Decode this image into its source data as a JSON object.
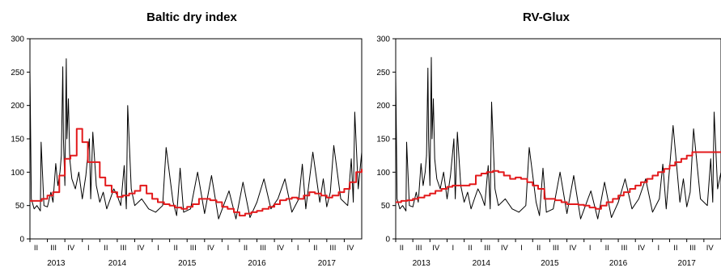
{
  "chart_data": [
    {
      "type": "line",
      "title": "Baltic dry index",
      "xlabel": "",
      "ylabel": "",
      "ylim": [
        0,
        300
      ],
      "yticks": [
        0,
        50,
        100,
        150,
        200,
        250,
        300
      ],
      "x_start": "2013 Q2",
      "x_end": "2017 Q4",
      "quarter_labels": [
        "II",
        "III",
        "IV",
        "I",
        "II",
        "III",
        "IV",
        "I",
        "II",
        "III",
        "IV",
        "I",
        "II",
        "III",
        "IV",
        "I",
        "II",
        "III",
        "IV"
      ],
      "year_labels": [
        "2013",
        "2014",
        "2015",
        "2016",
        "2017"
      ],
      "series": [
        {
          "color": "#000000",
          "x": [
            2013.25,
            2013.27,
            2013.31,
            2013.35,
            2013.4,
            2013.41,
            2013.45,
            2013.5,
            2013.55,
            2013.58,
            2013.62,
            2013.65,
            2013.68,
            2013.7,
            2013.72,
            2013.73,
            2013.75,
            2013.77,
            2013.78,
            2013.8,
            2013.82,
            2013.85,
            2013.9,
            2013.95,
            2014.0,
            2014.05,
            2014.1,
            2014.12,
            2014.15,
            2014.2,
            2014.25,
            2014.3,
            2014.35,
            2014.4,
            2014.45,
            2014.5,
            2014.55,
            2014.6,
            2014.63,
            2014.65,
            2014.7,
            2014.75,
            2014.85,
            2014.95,
            2015.05,
            2015.15,
            2015.2,
            2015.3,
            2015.35,
            2015.4,
            2015.45,
            2015.55,
            2015.65,
            2015.75,
            2015.85,
            2015.95,
            2016.1,
            2016.2,
            2016.3,
            2016.4,
            2016.5,
            2016.6,
            2016.7,
            2016.8,
            2016.9,
            2017.0,
            2017.1,
            2017.15,
            2017.2,
            2017.3,
            2017.4,
            2017.45,
            2017.5,
            2017.55,
            2017.6,
            2017.7,
            2017.8,
            2017.85,
            2017.88,
            2017.9,
            2017.95,
            2018.0
          ],
          "y": [
            255,
            60,
            45,
            50,
            42,
            145,
            50,
            48,
            70,
            55,
            113,
            80,
            100,
            125,
            258,
            150,
            80,
            270,
            150,
            210,
            120,
            90,
            75,
            100,
            60,
            95,
            150,
            60,
            160,
            80,
            55,
            70,
            45,
            60,
            75,
            65,
            50,
            110,
            45,
            200,
            75,
            50,
            60,
            45,
            40,
            50,
            137,
            55,
            35,
            106,
            40,
            45,
            100,
            38,
            95,
            30,
            72,
            30,
            85,
            32,
            55,
            90,
            45,
            60,
            90,
            40,
            60,
            112,
            45,
            130,
            55,
            90,
            48,
            70,
            140,
            60,
            50,
            120,
            55,
            190,
            75,
            130
          ]
        },
        {
          "color": "#e31a1c",
          "x": [
            2013.25,
            2013.33,
            2013.42,
            2013.5,
            2013.58,
            2013.67,
            2013.75,
            2013.83,
            2013.92,
            2014.0,
            2014.08,
            2014.17,
            2014.25,
            2014.33,
            2014.42,
            2014.5,
            2014.58,
            2014.67,
            2014.75,
            2014.83,
            2014.92,
            2015.0,
            2015.08,
            2015.17,
            2015.25,
            2015.33,
            2015.42,
            2015.5,
            2015.58,
            2015.67,
            2015.75,
            2015.83,
            2015.92,
            2016.0,
            2016.08,
            2016.17,
            2016.25,
            2016.33,
            2016.42,
            2016.5,
            2016.58,
            2016.67,
            2016.75,
            2016.83,
            2016.92,
            2017.0,
            2017.08,
            2017.17,
            2017.25,
            2017.33,
            2017.42,
            2017.5,
            2017.58,
            2017.67,
            2017.75,
            2017.83,
            2017.92,
            2018.0
          ],
          "y": [
            57,
            57,
            60,
            65,
            70,
            95,
            120,
            125,
            165,
            145,
            115,
            115,
            92,
            80,
            70,
            63,
            65,
            68,
            72,
            80,
            68,
            60,
            55,
            52,
            50,
            47,
            45,
            48,
            52,
            60,
            60,
            58,
            55,
            48,
            45,
            40,
            35,
            38,
            40,
            42,
            45,
            48,
            52,
            58,
            60,
            62,
            60,
            65,
            70,
            68,
            65,
            62,
            65,
            70,
            75,
            85,
            100,
            105
          ]
        }
      ]
    },
    {
      "type": "line",
      "title": "RV-Glux",
      "xlabel": "",
      "ylabel": "",
      "ylim": [
        0,
        300
      ],
      "yticks": [
        0,
        50,
        100,
        150,
        200,
        250,
        300
      ],
      "x_start": "2013 Q2",
      "x_end": "2017 Q4",
      "quarter_labels": [
        "II",
        "III",
        "IV",
        "I",
        "II",
        "III",
        "IV",
        "I",
        "II",
        "III",
        "IV",
        "I",
        "II",
        "III",
        "IV",
        "I",
        "II",
        "III",
        "IV"
      ],
      "year_labels": [
        "2013",
        "2014",
        "2015",
        "2016",
        "2017"
      ],
      "series": [
        {
          "color": "#000000",
          "x": [
            2013.25,
            2013.27,
            2013.31,
            2013.35,
            2013.4,
            2013.41,
            2013.45,
            2013.5,
            2013.55,
            2013.58,
            2013.62,
            2013.65,
            2013.68,
            2013.7,
            2013.72,
            2013.73,
            2013.75,
            2013.77,
            2013.78,
            2013.8,
            2013.82,
            2013.85,
            2013.9,
            2013.95,
            2014.0,
            2014.05,
            2014.1,
            2014.12,
            2014.15,
            2014.2,
            2014.25,
            2014.3,
            2014.35,
            2014.4,
            2014.45,
            2014.5,
            2014.55,
            2014.6,
            2014.63,
            2014.65,
            2014.7,
            2014.75,
            2014.85,
            2014.95,
            2015.05,
            2015.15,
            2015.2,
            2015.3,
            2015.35,
            2015.4,
            2015.45,
            2015.55,
            2015.65,
            2015.75,
            2015.85,
            2015.95,
            2016.1,
            2016.2,
            2016.3,
            2016.4,
            2016.5,
            2016.6,
            2016.7,
            2016.8,
            2016.9,
            2017.0,
            2017.1,
            2017.15,
            2017.2,
            2017.3,
            2017.4,
            2017.45,
            2017.5,
            2017.55,
            2017.6,
            2017.7,
            2017.8,
            2017.85,
            2017.88,
            2017.9,
            2017.95,
            2018.0
          ],
          "y": [
            248,
            60,
            45,
            50,
            42,
            145,
            50,
            48,
            70,
            55,
            113,
            80,
            100,
            125,
            256,
            150,
            80,
            272,
            150,
            210,
            120,
            90,
            75,
            100,
            60,
            95,
            150,
            60,
            160,
            80,
            55,
            70,
            45,
            60,
            75,
            65,
            50,
            110,
            45,
            205,
            75,
            50,
            60,
            45,
            40,
            50,
            137,
            55,
            35,
            106,
            40,
            45,
            100,
            38,
            95,
            30,
            72,
            30,
            85,
            32,
            55,
            90,
            45,
            60,
            90,
            40,
            60,
            112,
            45,
            170,
            55,
            90,
            48,
            70,
            165,
            60,
            50,
            120,
            55,
            190,
            75,
            100
          ]
        },
        {
          "color": "#e31a1c",
          "x": [
            2013.25,
            2013.33,
            2013.42,
            2013.5,
            2013.58,
            2013.67,
            2013.75,
            2013.83,
            2013.92,
            2014.0,
            2014.08,
            2014.17,
            2014.25,
            2014.33,
            2014.42,
            2014.5,
            2014.58,
            2014.67,
            2014.75,
            2014.83,
            2014.92,
            2015.0,
            2015.08,
            2015.17,
            2015.25,
            2015.33,
            2015.42,
            2015.5,
            2015.58,
            2015.67,
            2015.75,
            2015.83,
            2015.92,
            2016.0,
            2016.08,
            2016.17,
            2016.25,
            2016.33,
            2016.42,
            2016.5,
            2016.58,
            2016.67,
            2016.75,
            2016.83,
            2016.92,
            2017.0,
            2017.08,
            2017.17,
            2017.25,
            2017.33,
            2017.42,
            2017.5,
            2017.58,
            2017.67,
            2017.75,
            2017.83,
            2017.92,
            2018.0
          ],
          "y": [
            55,
            57,
            58,
            60,
            62,
            65,
            68,
            72,
            75,
            78,
            80,
            80,
            80,
            82,
            95,
            98,
            100,
            102,
            100,
            95,
            90,
            92,
            90,
            85,
            80,
            75,
            60,
            60,
            58,
            55,
            52,
            52,
            51,
            50,
            47,
            45,
            50,
            55,
            60,
            65,
            70,
            75,
            80,
            85,
            90,
            95,
            100,
            105,
            110,
            115,
            120,
            125,
            130,
            130,
            130,
            130,
            130,
            130
          ]
        }
      ]
    }
  ]
}
